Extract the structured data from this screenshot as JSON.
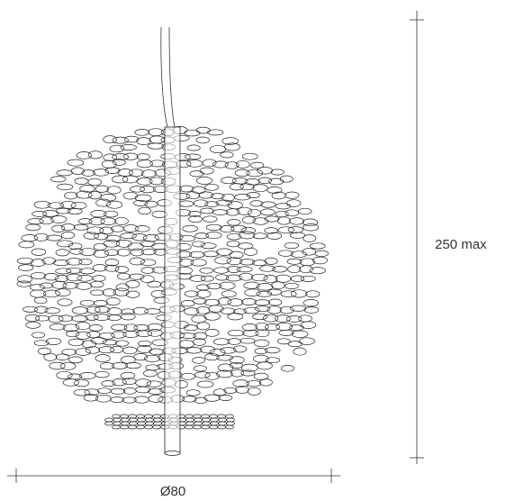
{
  "dimensions": {
    "height": "250 max",
    "diameter": "Ø80"
  }
}
